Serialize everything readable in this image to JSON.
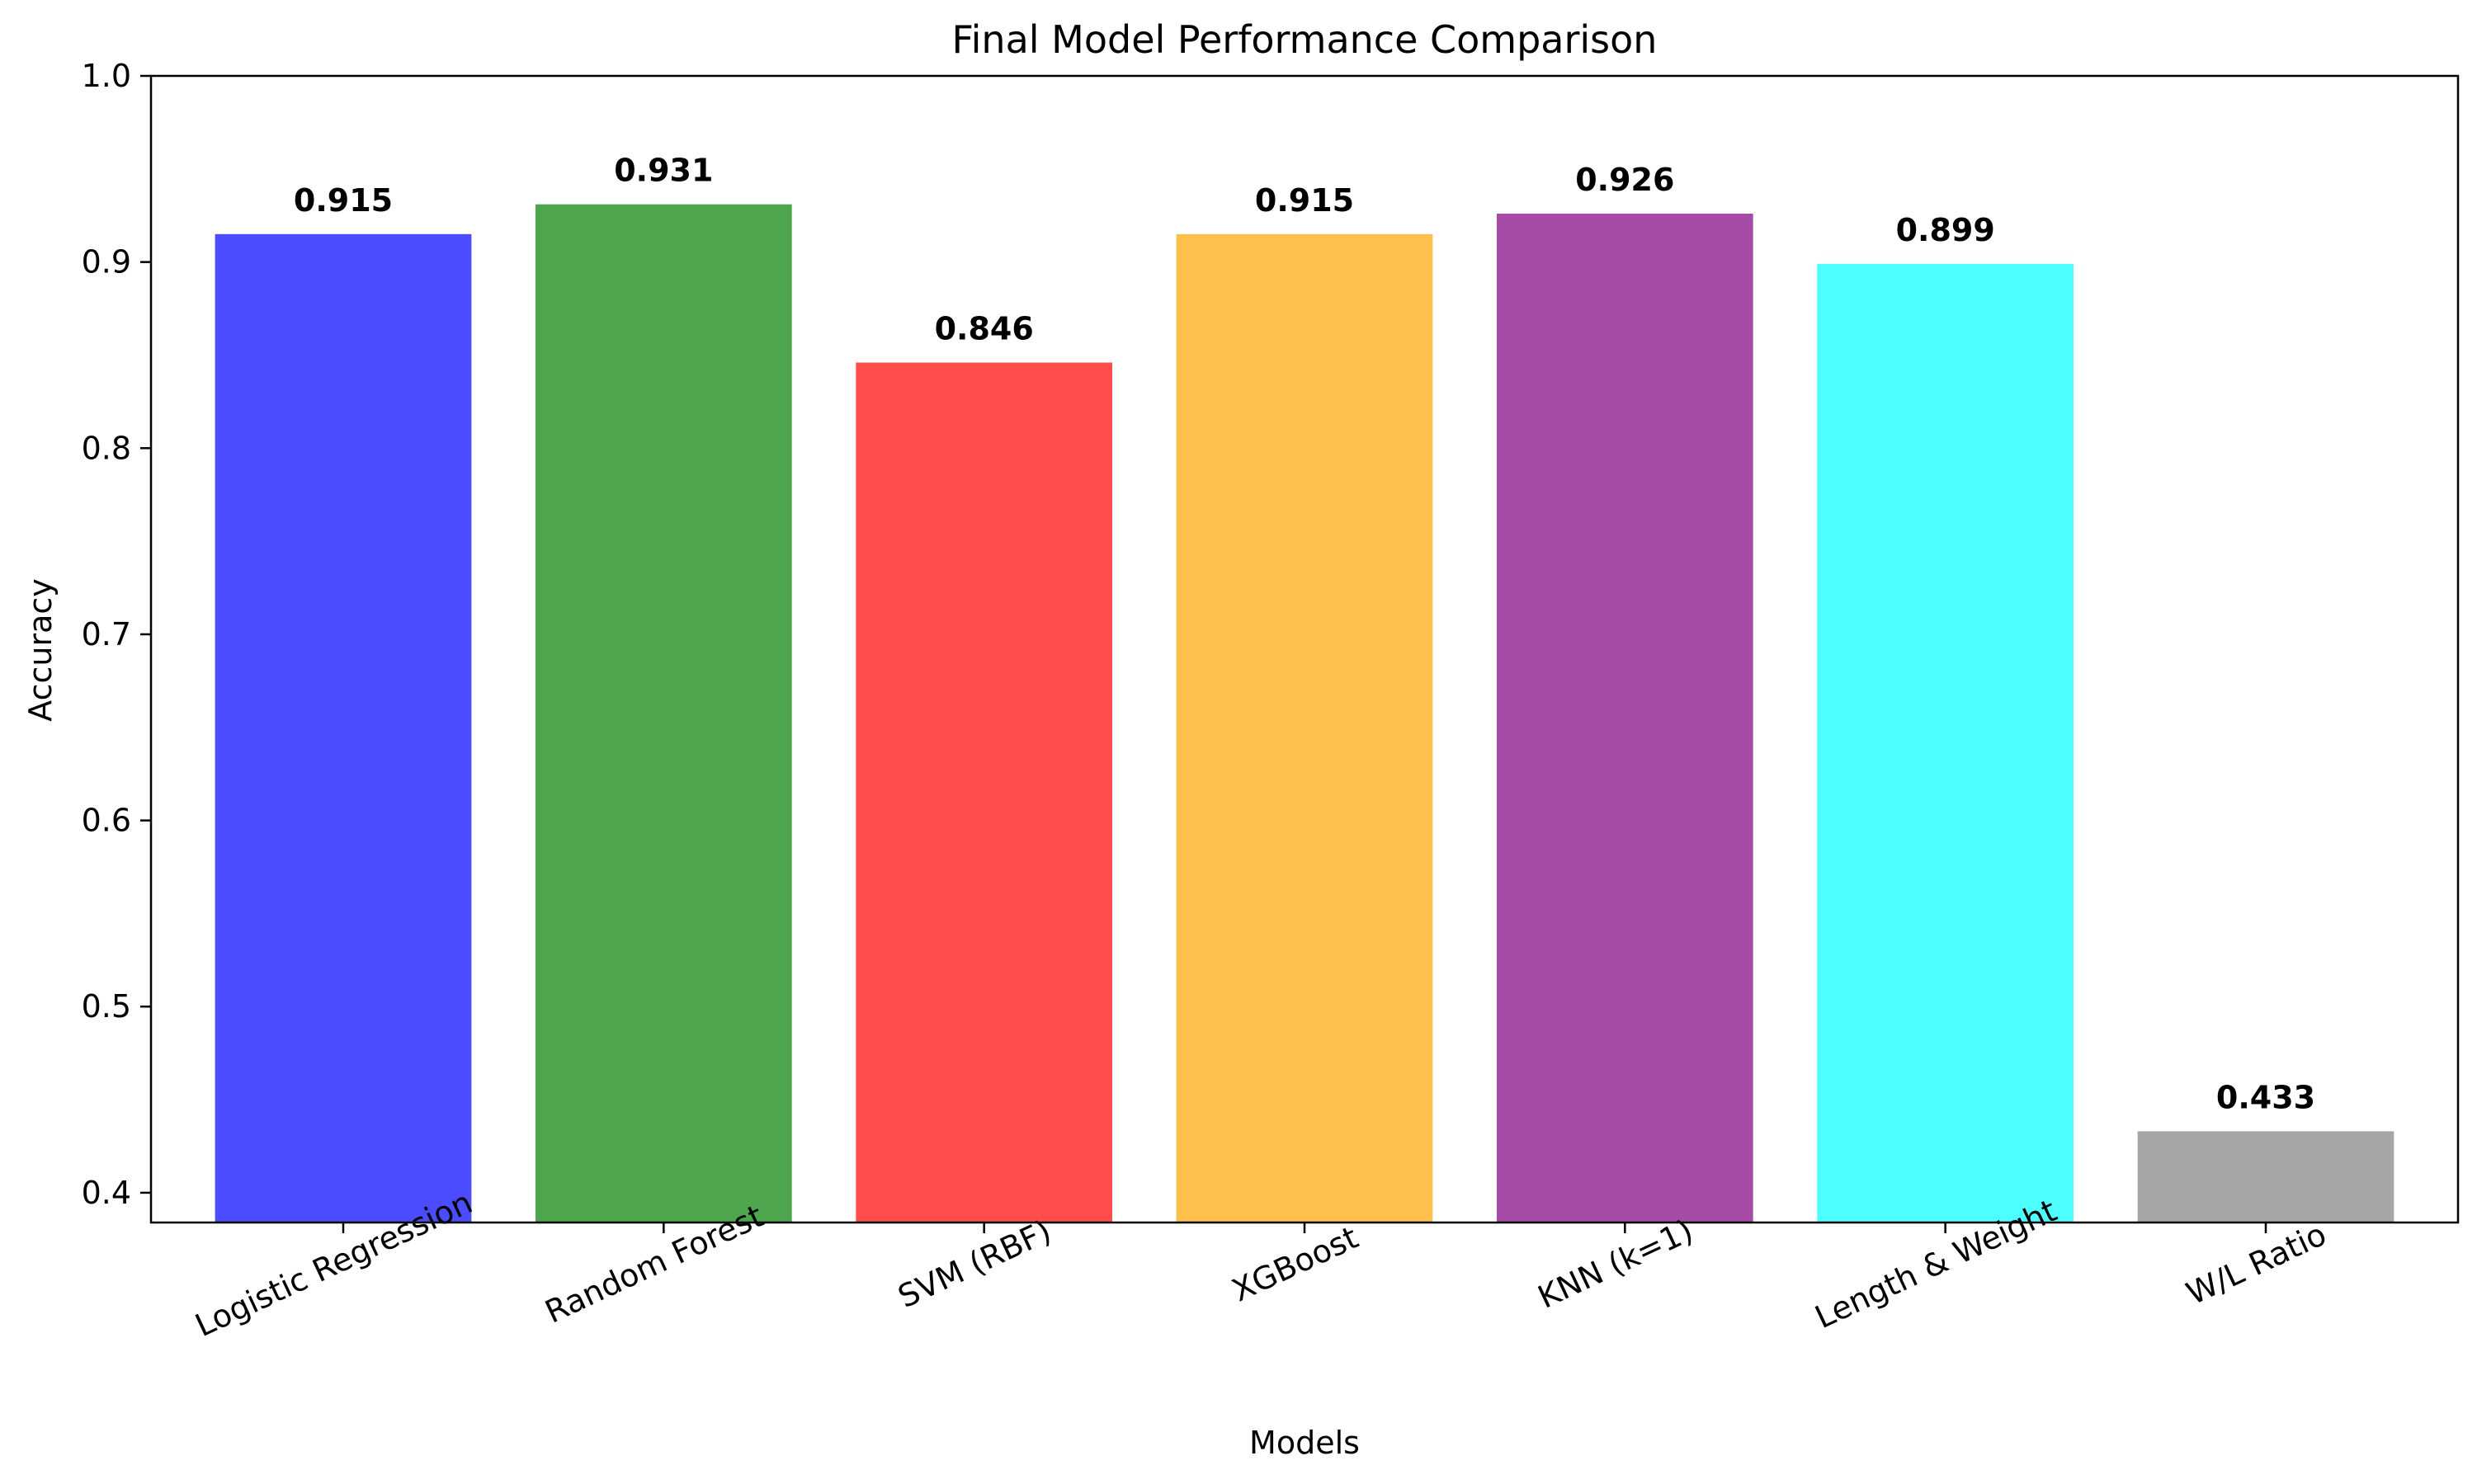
{
  "chart_data": {
    "type": "bar",
    "title": "Final Model Performance Comparison",
    "xlabel": "Models",
    "ylabel": "Accuracy",
    "ylim": [
      0.384,
      1.0
    ],
    "yticks": [
      "0.4",
      "0.5",
      "0.6",
      "0.7",
      "0.8",
      "0.9",
      "1.0"
    ],
    "categories": [
      "Logistic Regression",
      "Random Forest",
      "SVM (RBF)",
      "XGBoost",
      "KNN (k=1)",
      "Length & Weight",
      "W/L Ratio"
    ],
    "values": [
      0.915,
      0.931,
      0.846,
      0.915,
      0.926,
      0.899,
      0.433
    ],
    "value_labels": [
      "0.915",
      "0.931",
      "0.846",
      "0.915",
      "0.926",
      "0.899",
      "0.433"
    ],
    "colors": [
      "#4b4bff",
      "#4da64d",
      "#ff4d4d",
      "#ffbf4d",
      "#a64ca6",
      "#4dffff",
      "#a6a6a6"
    ],
    "grid": false,
    "legend": "none"
  }
}
